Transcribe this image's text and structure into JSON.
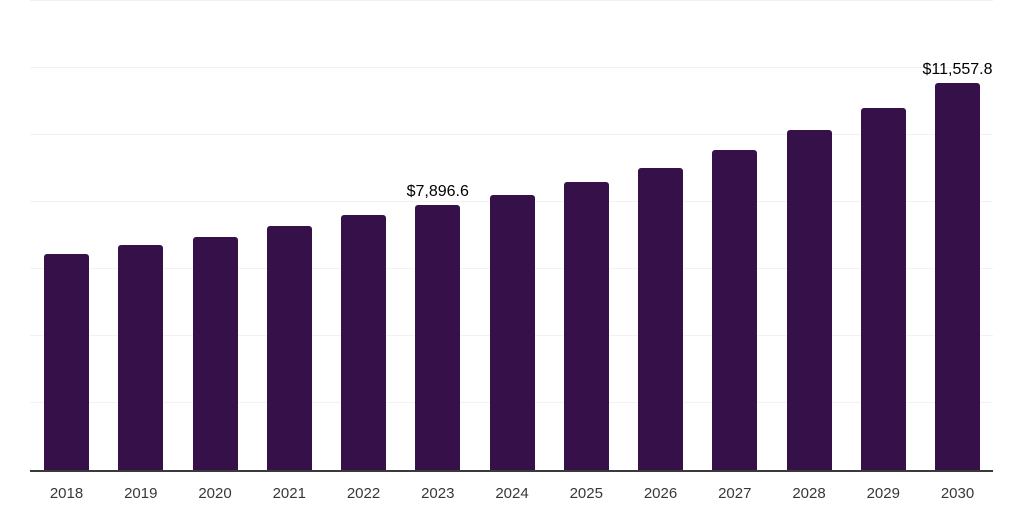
{
  "chart_data": {
    "type": "bar",
    "title": "",
    "xlabel": "",
    "ylabel": "",
    "categories": [
      "2018",
      "2019",
      "2020",
      "2021",
      "2022",
      "2023",
      "2024",
      "2025",
      "2026",
      "2027",
      "2028",
      "2029",
      "2030"
    ],
    "values": [
      6440,
      6710,
      6970,
      7270,
      7600,
      7896.6,
      8220,
      8610,
      9030,
      9560,
      10160,
      10810,
      11557.8
    ],
    "data_labels": [
      "",
      "",
      "",
      "",
      "",
      "$7,896.6",
      "",
      "",
      "",
      "",
      "",
      "",
      "$11,557.8"
    ],
    "ylim": [
      0,
      14000
    ],
    "gridline_values": [
      2000,
      4000,
      6000,
      8000,
      10000,
      12000,
      14000
    ],
    "grid": "horizontal",
    "legend": "none",
    "y_tick_labels_visible": false,
    "colors": {
      "bar": "#351049",
      "axis_line": "#3a3a3a",
      "gridline": "#f2f2f2",
      "x_tick_label": "#383838",
      "data_label": "#000000",
      "background": "#ffffff"
    }
  }
}
